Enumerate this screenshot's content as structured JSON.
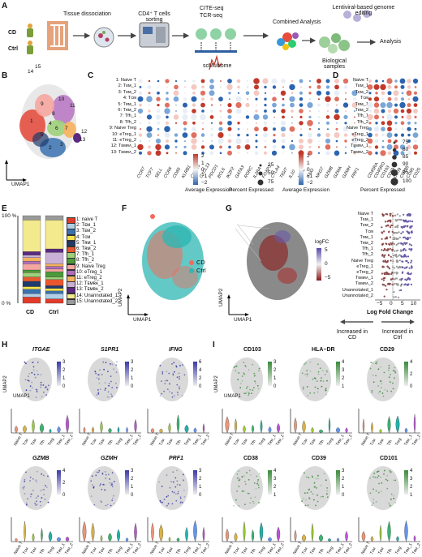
{
  "panels": {
    "A": "A",
    "B": "B",
    "C": "C",
    "D": "D",
    "E": "E",
    "F": "F",
    "G": "G",
    "H": "H",
    "I": "I"
  },
  "panelA": {
    "groups": [
      "CD",
      "Ctrl"
    ],
    "steps": [
      "Tissue dissociation",
      "CD4⁺ T cells sorting",
      "CITE-seq",
      "TCR-seq",
      "scMultiome",
      "Combined Analysis",
      "Lentiviral-based genome editing",
      "Biological samples",
      "Analysis"
    ]
  },
  "axes": {
    "umap1": "UMAP1",
    "umap2": "UMAP2"
  },
  "clusters": [
    "1: Naive T",
    "2: Tᴇᴍ_1",
    "3: Tᴇᴍ_2",
    "4: Tᴄᴍ",
    "5: Tʀᴍ_1",
    "6: Tʀᴍ_2",
    "7: Tfh_1",
    "8: Tfh_2",
    "9: Naive Treg",
    "10: eTreg_1",
    "11: eTreg_2",
    "12: Tᴇᴍʀᴀ_1",
    "13: Tᴇᴍʀᴀ_2"
  ],
  "clusterNumbersB": [
    "1",
    "2",
    "3",
    "4",
    "5",
    "6",
    "7",
    "8",
    "9",
    "10",
    "11",
    "12",
    "13",
    "14",
    "15"
  ],
  "genesC": [
    "CCR7",
    "TCF7",
    "SELL",
    "CCR6",
    "CD69",
    "KLRB1",
    "CXCR5",
    "CXCL13",
    "PDCD1",
    "BCL6",
    "IKZF2",
    "GATA3",
    "RORC",
    "IL2RA",
    "FOXP3",
    "CTLA4",
    "TIGIT",
    "IL10",
    "KLF2",
    "IFNG",
    "NKG7",
    "GZMB",
    "GZMA",
    "GZMH",
    "PRF1"
  ],
  "genesD": [
    "CD45RA",
    "CD45RO",
    "CD103",
    "CD69",
    "CD39",
    "CD185",
    "CD95",
    "CD25"
  ],
  "rowsD": [
    "Naive T",
    "Tᴇᴍ_1",
    "Tᴇᴍ_2",
    "Tᴄᴍ",
    "Tʀᴍ_1",
    "Tʀᴍ_2",
    "Tfh_1",
    "Tfh_2",
    "Naive Treg",
    "eTreg_1",
    "eTreg_2",
    "Tᴇᴍʀᴀ_1",
    "Tᴇᴍʀᴀ_2"
  ],
  "legendC": {
    "avgTitle": "Average Expression",
    "avgTicks": [
      "2",
      "1",
      "0",
      "−1",
      "−2"
    ],
    "pctTitle": "Percent Expressed",
    "pctTicks": [
      "25",
      "50",
      "75"
    ]
  },
  "legendD": {
    "avgTitle": "Average Expression",
    "avgTicks": [
      "2",
      "1",
      "0",
      "−1",
      "−2"
    ],
    "pctTitle": "Percent Expressed",
    "pctTicks": [
      "75",
      "80",
      "85",
      "90",
      "95",
      "100"
    ]
  },
  "panelE": {
    "yticks": [
      "100 %",
      "0 %"
    ],
    "xlabels": [
      "CD",
      "Ctrl"
    ],
    "legend": [
      "1: naive T",
      "2: Tᴇᴍ_1",
      "3: Tᴇᴍ_2",
      "4: Tᴄᴍ",
      "5: Tʀᴍ_1",
      "6: Tʀᴍ_2",
      "7: Tfh_1",
      "8: Tfh_2",
      "9: Naive Treg",
      "10: eTreg_1",
      "11: eTreg_2",
      "12: Tᴇᴍʀᴀ_1",
      "13: Tᴇᴍʀᴀ_2",
      "14: Unannotated_1",
      "15: Unannotated_2"
    ],
    "colors": [
      "#e23b2a",
      "#b0d0e8",
      "#3a72b0",
      "#f7e34a",
      "#1f3a6e",
      "#e8572e",
      "#9ed07a",
      "#4d9a3a",
      "#f5a6a0",
      "#b36cc0",
      "#f6b35d",
      "#c9b0d6",
      "#5a2a82",
      "#f2ea8c",
      "#9a9a9a"
    ],
    "cd": [
      0.07,
      0.04,
      0.05,
      0.03,
      0.06,
      0.05,
      0.05,
      0.03,
      0.07,
      0.03,
      0.04,
      0.03,
      0.04,
      0.36,
      0.05
    ],
    "ctrl": [
      0.05,
      0.06,
      0.03,
      0.03,
      0.03,
      0.07,
      0.03,
      0.06,
      0.03,
      0.03,
      0.03,
      0.13,
      0.04,
      0.33,
      0.05
    ]
  },
  "panelF": {
    "legend": [
      "CD",
      "Ctrl"
    ],
    "colors": [
      "#f26b5b",
      "#2fb7b3"
    ]
  },
  "panelG": {
    "colorbarTitle": "logFC",
    "colorbarTicks": [
      "5",
      "0",
      "−5"
    ],
    "rows": [
      "Naive T",
      "Tᴇᴍ_1",
      "Tᴇᴍ_2",
      "Tᴄᴍ",
      "Tʀᴍ_1",
      "Tʀᴍ_2",
      "Tfh_1",
      "Tfh_2",
      "Naive Treg",
      "eTreg_1",
      "eTreg_2",
      "Tᴇᴍʀᴀ_1",
      "Tᴇᴍʀᴀ_2",
      "Unannotated_1",
      "Unannotated_2"
    ],
    "xticks": [
      "−5",
      "0",
      "5",
      "10"
    ],
    "xlabel": "Log Fold Change",
    "arrowLeft": "Increased in CD",
    "arrowRight": "Increased in Ctrl"
  },
  "panelH": {
    "genes": [
      "ITGAE",
      "S1PR1",
      "IFNG",
      "GZMB",
      "GZMH",
      "PRF1"
    ],
    "scales": [
      [
        "3",
        "2",
        "1",
        "0"
      ],
      [
        "3",
        "2",
        "1",
        "0"
      ],
      [
        "6",
        "4",
        "2",
        "0"
      ],
      [
        "4",
        "2",
        "0"
      ],
      [
        "3",
        "2",
        "1",
        "0"
      ],
      [
        "3",
        "2",
        "1",
        "0"
      ]
    ]
  },
  "panelI": {
    "proteins": [
      "CD103",
      "HLA−DR",
      "CD29",
      "CD38",
      "CD39",
      "CD101"
    ],
    "scales": [
      [
        "3",
        "2",
        "1",
        "0"
      ],
      [
        "4",
        "3",
        "2",
        "1"
      ],
      [
        "4",
        "2",
        "0"
      ],
      [
        "4",
        "3",
        "2",
        "1"
      ],
      [
        "3",
        "2",
        "1",
        "0"
      ],
      [
        "4",
        "3",
        "2",
        "1"
      ]
    ]
  },
  "violinX": [
    "Naive T",
    "Tᴄᴍ",
    "Tᴇᴍ",
    "Tfh",
    "Treg",
    "Tʀᴍ_1",
    "Tʀᴍ_2"
  ]
}
